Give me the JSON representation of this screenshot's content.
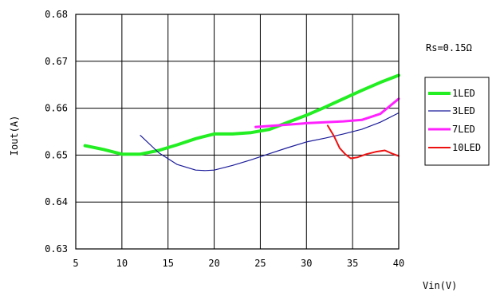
{
  "chart_data": {
    "type": "line",
    "title": "",
    "xlabel": "Vin(V)",
    "ylabel": "Iout(A)",
    "xlim": [
      5,
      40
    ],
    "ylim": [
      0.63,
      0.68
    ],
    "x_ticks": [
      "5",
      "10",
      "15",
      "20",
      "25",
      "30",
      "35",
      "40"
    ],
    "y_ticks": [
      "0.68",
      "0.67",
      "0.66",
      "0.65",
      "0.64",
      "0.63"
    ],
    "grid": true,
    "legend_position": "right",
    "annotation": "Rs=0.15Ω",
    "series": [
      {
        "name": "1LED",
        "color": "#22ee22",
        "x": [
          6,
          8,
          10,
          12,
          14,
          16,
          18,
          20,
          22,
          24,
          26,
          28,
          30,
          32,
          34,
          36,
          38,
          40
        ],
        "y": [
          0.652,
          0.6512,
          0.6502,
          0.6502,
          0.651,
          0.6522,
          0.6535,
          0.6545,
          0.6545,
          0.6548,
          0.6555,
          0.657,
          0.6585,
          0.6602,
          0.662,
          0.6638,
          0.6655,
          0.667
        ]
      },
      {
        "name": "3LED",
        "color": "#1a1a9a",
        "x": [
          12,
          14,
          16,
          18,
          19,
          20,
          22,
          24,
          26,
          28,
          30,
          32,
          34,
          36,
          38,
          40
        ],
        "y": [
          0.6542,
          0.6505,
          0.648,
          0.6468,
          0.6467,
          0.6468,
          0.6478,
          0.649,
          0.6503,
          0.6516,
          0.6528,
          0.6536,
          0.6545,
          0.6555,
          0.657,
          0.659
        ]
      },
      {
        "name": "7LED",
        "color": "#ff22ff",
        "x": [
          24.5,
          26,
          28,
          30,
          32,
          34,
          36,
          38,
          40
        ],
        "y": [
          0.656,
          0.6562,
          0.6565,
          0.6568,
          0.657,
          0.6572,
          0.6575,
          0.6588,
          0.662
        ]
      },
      {
        "name": "10LED",
        "color": "#ee1111",
        "x": [
          32.3,
          33,
          33.6,
          34.2,
          34.8,
          35.5,
          36.5,
          37.5,
          38.5,
          39.3,
          40
        ],
        "y": [
          0.6563,
          0.654,
          0.6515,
          0.6502,
          0.6493,
          0.6495,
          0.6502,
          0.6507,
          0.651,
          0.6503,
          0.6498
        ]
      }
    ]
  }
}
